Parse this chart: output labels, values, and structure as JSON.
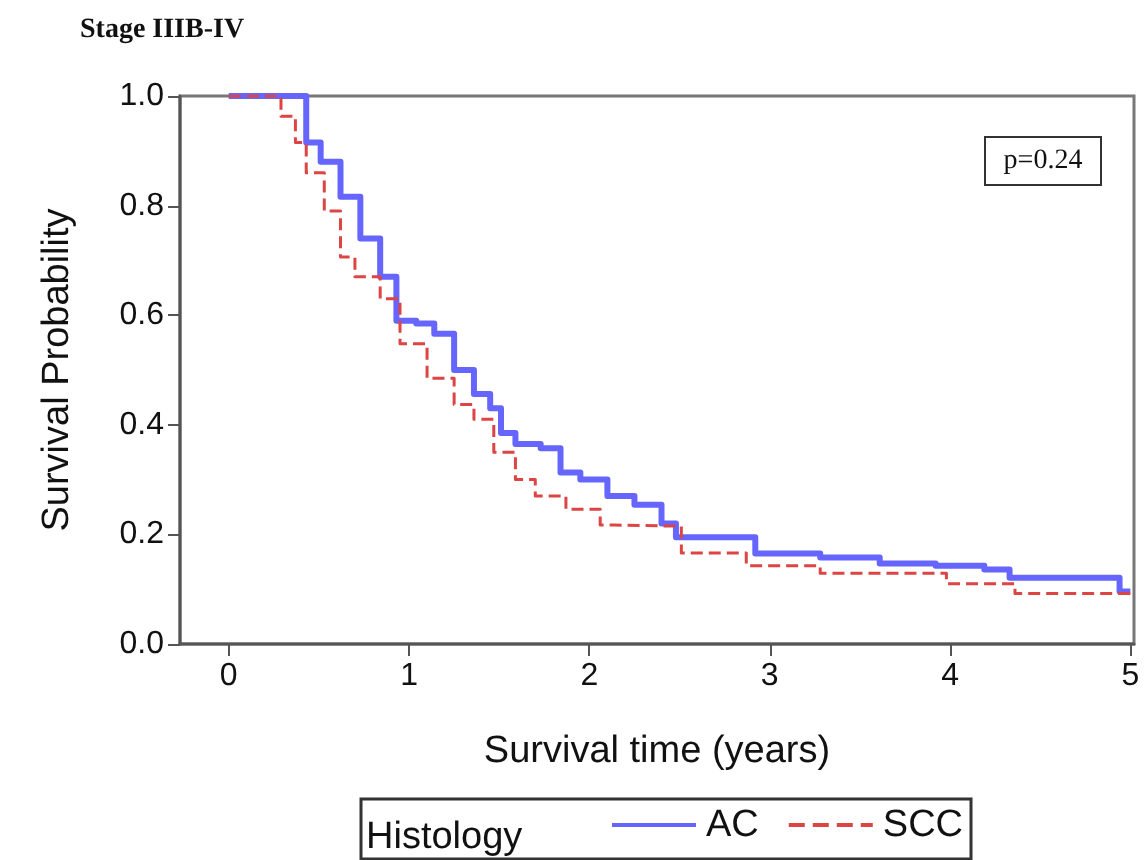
{
  "chart_data": {
    "type": "step",
    "title": "Stage IIIB-IV",
    "xlabel": "Survival time (years)",
    "ylabel": "Survival Probability",
    "legend_title": "Histology",
    "annotations": [
      "p=0.24"
    ],
    "xlim": [
      -0.27,
      5.02
    ],
    "xticks": [
      0,
      1,
      2,
      3,
      4,
      5
    ],
    "ylim": [
      0,
      1
    ],
    "yticks": [
      {
        "value": 0,
        "label": "0.0"
      },
      {
        "value": 0.2,
        "label": "0.2"
      },
      {
        "value": 0.4,
        "label": "0.4"
      },
      {
        "value": 0.6,
        "label": "0.6"
      },
      {
        "value": 0.8,
        "label": "0.8"
      },
      {
        "value": 1,
        "label": "1.0"
      }
    ],
    "grid": false,
    "legend": "bottom",
    "marker": "none",
    "series": [
      {
        "name": "AC",
        "color": "#6666ff",
        "line_style": "solid",
        "x": [
          0,
          0.27,
          0.43,
          0.51,
          0.62,
          0.73,
          0.84,
          0.93,
          1.04,
          1.14,
          1.25,
          1.36,
          1.45,
          1.51,
          1.59,
          1.73,
          1.84,
          1.95,
          2.1,
          2.25,
          2.4,
          2.48,
          2.76,
          2.92,
          3.28,
          3.61,
          3.92,
          4.19,
          4.33,
          4.94,
          5
        ],
        "values": [
          1,
          1,
          0.915,
          0.88,
          0.816,
          0.74,
          0.67,
          0.59,
          0.585,
          0.566,
          0.5,
          0.456,
          0.43,
          0.385,
          0.365,
          0.357,
          0.313,
          0.3,
          0.27,
          0.254,
          0.22,
          0.195,
          0.195,
          0.165,
          0.158,
          0.147,
          0.143,
          0.136,
          0.121,
          0.096,
          0.096
        ]
      },
      {
        "name": "SCC",
        "color": "#dd4444",
        "line_style": "dashed",
        "x": [
          0,
          0.14,
          0.29,
          0.37,
          0.43,
          0.53,
          0.62,
          0.7,
          0.84,
          0.95,
          1.1,
          1.25,
          1.36,
          1.47,
          1.59,
          1.7,
          1.87,
          2.06,
          2.14,
          2.51,
          2.87,
          3.28,
          3.69,
          3.98,
          4.36,
          5
        ],
        "values": [
          1,
          1,
          0.963,
          0.915,
          0.86,
          0.79,
          0.706,
          0.67,
          0.63,
          0.548,
          0.485,
          0.437,
          0.41,
          0.35,
          0.3,
          0.27,
          0.246,
          0.217,
          0.215,
          0.166,
          0.143,
          0.129,
          0.129,
          0.11,
          0.092,
          0.081
        ]
      }
    ]
  }
}
